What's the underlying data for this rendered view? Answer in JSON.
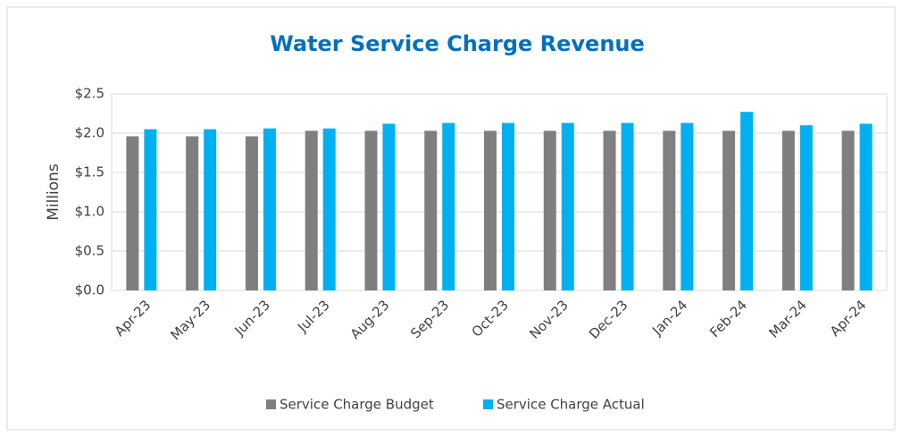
{
  "chart_data": {
    "type": "bar",
    "title": "Water Service Charge Revenue",
    "y_label": "Millions",
    "categories": [
      "Apr-23",
      "May-23",
      "Jun-23",
      "Jul-23",
      "Aug-23",
      "Sep-23",
      "Oct-23",
      "Nov-23",
      "Dec-23",
      "Jan-24",
      "Feb-24",
      "Mar-24",
      "Apr-24"
    ],
    "series": [
      {
        "name": "Service Charge Budget",
        "color": "#7f7f7f",
        "values": [
          1.96,
          1.96,
          1.96,
          2.03,
          2.03,
          2.03,
          2.03,
          2.03,
          2.03,
          2.03,
          2.03,
          2.03,
          2.03
        ]
      },
      {
        "name": "Service Charge Actual",
        "color": "#00b0f0",
        "values": [
          2.05,
          2.05,
          2.06,
          2.06,
          2.12,
          2.13,
          2.13,
          2.13,
          2.13,
          2.13,
          2.27,
          2.1,
          2.12
        ]
      }
    ],
    "ylim": [
      0,
      2.5
    ],
    "yticks": [
      {
        "value": 0,
        "label": "$0.0"
      },
      {
        "value": 0.5,
        "label": "$0.5"
      },
      {
        "value": 1,
        "label": "$1.0"
      },
      {
        "value": 1.5,
        "label": "$1.5"
      },
      {
        "value": 2,
        "label": "$2.0"
      },
      {
        "value": 2.5,
        "label": "$2.5"
      }
    ],
    "grid": true,
    "legend": "bottom"
  }
}
